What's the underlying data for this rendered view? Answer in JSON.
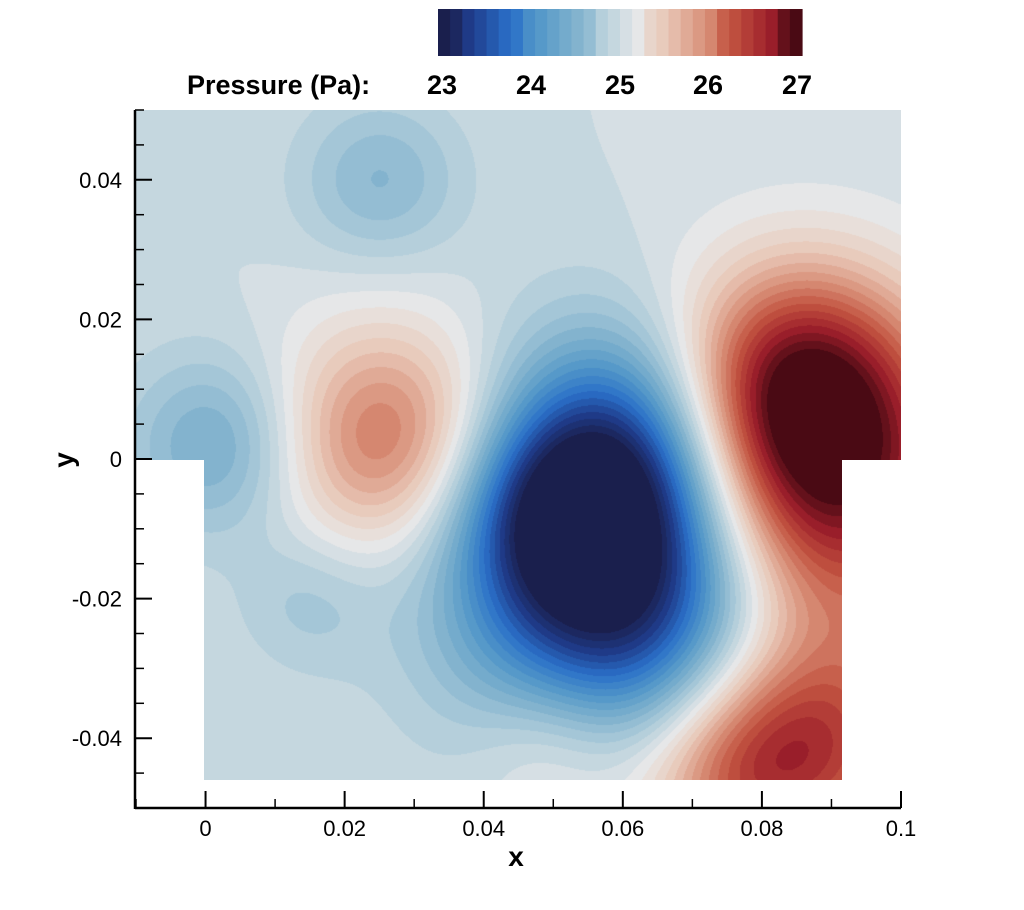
{
  "chart_data": {
    "type": "heatmap",
    "title": "",
    "xlabel": "x",
    "ylabel": "y",
    "xlim": [
      -0.01,
      0.1
    ],
    "ylim": [
      -0.05,
      0.05
    ],
    "x_ticks": [
      0,
      0.02,
      0.04,
      0.06,
      0.08,
      0.1
    ],
    "x_tick_labels": [
      "0",
      "0.02",
      "0.04",
      "0.06",
      "0.08",
      "0.1"
    ],
    "y_ticks": [
      0.04,
      0.02,
      0,
      -0.02,
      -0.04
    ],
    "y_tick_labels": [
      "0.04",
      "0.02",
      "0",
      "-0.02",
      "-0.04"
    ],
    "colorbar": {
      "label": "Pressure (Pa):",
      "min": 22.6,
      "max": 27.0,
      "ticks": [
        23,
        24,
        25,
        26,
        27
      ],
      "tick_labels": [
        "23",
        "24",
        "25",
        "26",
        "27"
      ],
      "placement": "top",
      "colors": [
        "#1a1f4d",
        "#1f3c8a",
        "#2a6fc8",
        "#4f95c8",
        "#7fb1cd",
        "#b3cedb",
        "#e8e8e8",
        "#e8c8b8",
        "#d9917a",
        "#c25440",
        "#9e1f2b",
        "#4a0a14"
      ]
    },
    "background_pressure": 24.8,
    "domain": {
      "channel": {
        "x": [
          -0.01,
          0.1
        ],
        "y": [
          0,
          0.05
        ]
      },
      "cavity": {
        "x": [
          0,
          0.0915
        ],
        "y": [
          -0.0455,
          0
        ]
      }
    },
    "features": [
      {
        "kind": "low",
        "x": 0.06,
        "y": -0.019,
        "value": 22.6
      },
      {
        "kind": "low",
        "x": 0.06,
        "y": 0.001,
        "value": 23.3
      },
      {
        "kind": "low",
        "x": 0.05,
        "y": -0.008,
        "value": 24.0
      },
      {
        "kind": "high",
        "x": 0.087,
        "y": -0.003,
        "value": 27.0
      },
      {
        "kind": "high",
        "x": 0.085,
        "y": 0.012,
        "value": 26.0
      },
      {
        "kind": "high",
        "x": 0.026,
        "y": 0.003,
        "value": 26.0
      },
      {
        "kind": "high",
        "x": 0.088,
        "y": -0.04,
        "value": 26.1
      },
      {
        "kind": "high",
        "x": 0.075,
        "y": -0.045,
        "value": 25.8
      },
      {
        "kind": "high",
        "x": 0.05,
        "y": -0.041,
        "value": 25.3
      },
      {
        "kind": "low",
        "x": 0.002,
        "y": 0.002,
        "value": 24.1
      },
      {
        "kind": "low",
        "x": 0.025,
        "y": 0.04,
        "value": 24.3
      },
      {
        "kind": "low",
        "x": 0.015,
        "y": -0.02,
        "value": 24.5
      }
    ]
  }
}
